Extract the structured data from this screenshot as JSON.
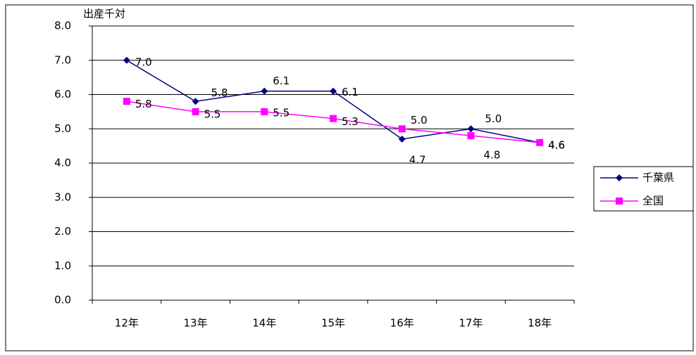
{
  "chart_data": {
    "type": "line",
    "y_label": "出産千対",
    "categories": [
      "12年",
      "13年",
      "14年",
      "15年",
      "16年",
      "17年",
      "18年"
    ],
    "series": [
      {
        "name": "千葉県",
        "color": "#000080",
        "marker": "diamond",
        "values": [
          7.0,
          5.8,
          6.1,
          6.1,
          4.7,
          5.0,
          4.6
        ],
        "value_labels": [
          "7.0",
          "5.8",
          "6.1",
          "6.1",
          "4.7",
          "5.0",
          "4.6"
        ]
      },
      {
        "name": "全国",
        "color": "#ff00ff",
        "marker": "square",
        "values": [
          5.8,
          5.5,
          5.5,
          5.3,
          5.0,
          4.8,
          4.6
        ],
        "value_labels": [
          "5.8",
          "5.5",
          "5.5",
          "5.3",
          "5.0",
          "4.8",
          "4.6"
        ]
      }
    ],
    "ylim": [
      0,
      8
    ],
    "yticks": [
      {
        "value": 0,
        "label": "0.0"
      },
      {
        "value": 1,
        "label": "1.0"
      },
      {
        "value": 2,
        "label": "2.0"
      },
      {
        "value": 3,
        "label": "3.0"
      },
      {
        "value": 4,
        "label": "4.0"
      },
      {
        "value": 5,
        "label": "5.0"
      },
      {
        "value": 6,
        "label": "6.0"
      },
      {
        "value": 7,
        "label": "7.0"
      },
      {
        "value": 8,
        "label": "8.0"
      }
    ],
    "grid": true,
    "legend": "right"
  }
}
